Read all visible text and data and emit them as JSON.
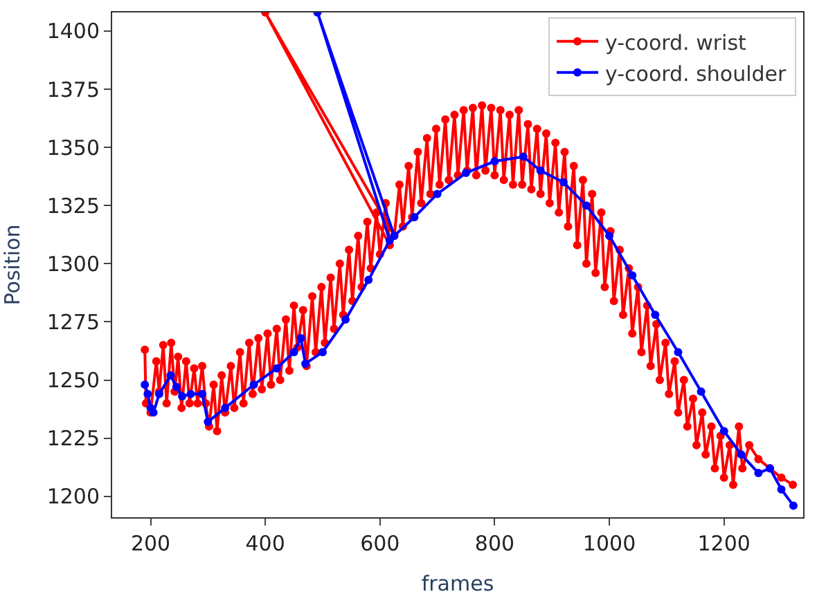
{
  "chart_data": {
    "type": "line",
    "xlabel": "frames",
    "ylabel": "Position",
    "xlim": [
      133,
      1338
    ],
    "ylim": [
      1191,
      1408
    ],
    "xticks": [
      200,
      400,
      600,
      800,
      1000,
      1200
    ],
    "yticks": [
      1200,
      1225,
      1250,
      1275,
      1300,
      1325,
      1350,
      1375,
      1400
    ],
    "legend": "top right",
    "marker": "circle",
    "line_style": "solid",
    "series": [
      {
        "name": "y-coord. wrist",
        "color": "#ff0000",
        "x": [
          190,
          192,
          200,
          210,
          215,
          222,
          228,
          236,
          242,
          248,
          254,
          262,
          268,
          276,
          282,
          290,
          296,
          302,
          310,
          316,
          324,
          330,
          340,
          346,
          356,
          362,
          372,
          378,
          388,
          394,
          404,
          410,
          420,
          426,
          436,
          442,
          450,
          456,
          466,
          472,
          482,
          488,
          498,
          504,
          514,
          520,
          530,
          536,
          546,
          552,
          562,
          568,
          578,
          584,
          594,
          600,
          610,
          617,
          400,
          625,
          634,
          640,
          650,
          656,
          666,
          672,
          682,
          688,
          698,
          704,
          714,
          720,
          730,
          736,
          746,
          752,
          762,
          768,
          778,
          784,
          794,
          800,
          810,
          816,
          826,
          832,
          842,
          848,
          858,
          864,
          874,
          880,
          890,
          896,
          906,
          912,
          922,
          928,
          938,
          944,
          954,
          960,
          970,
          976,
          986,
          992,
          1002,
          1008,
          1018,
          1024,
          1034,
          1040,
          1050,
          1056,
          1066,
          1072,
          1082,
          1088,
          1098,
          1104,
          1114,
          1120,
          1130,
          1136,
          1146,
          1152,
          1162,
          1168,
          1178,
          1184,
          1194,
          1200,
          1210,
          1216,
          1226,
          1232,
          1244,
          1260,
          1280,
          1300,
          1320
        ],
        "values": [
          1263,
          1240,
          1236,
          1258,
          1245,
          1265,
          1240,
          1266,
          1245,
          1260,
          1238,
          1258,
          1240,
          1255,
          1240,
          1256,
          1240,
          1230,
          1248,
          1228,
          1252,
          1236,
          1256,
          1238,
          1262,
          1240,
          1266,
          1244,
          1268,
          1246,
          1270,
          1248,
          1272,
          1250,
          1276,
          1254,
          1282,
          1264,
          1280,
          1256,
          1286,
          1262,
          1290,
          1266,
          1294,
          1272,
          1300,
          1278,
          1306,
          1284,
          1312,
          1290,
          1318,
          1298,
          1322,
          1304,
          1326,
          1308,
          1408,
          1312,
          1334,
          1316,
          1342,
          1320,
          1348,
          1326,
          1354,
          1330,
          1358,
          1334,
          1362,
          1336,
          1364,
          1338,
          1366,
          1340,
          1367,
          1338,
          1368,
          1340,
          1367,
          1338,
          1366,
          1336,
          1364,
          1334,
          1366,
          1334,
          1360,
          1332,
          1358,
          1330,
          1356,
          1326,
          1352,
          1322,
          1348,
          1316,
          1342,
          1308,
          1336,
          1300,
          1330,
          1296,
          1322,
          1290,
          1314,
          1284,
          1306,
          1278,
          1298,
          1270,
          1290,
          1262,
          1282,
          1256,
          1274,
          1250,
          1266,
          1244,
          1258,
          1236,
          1250,
          1230,
          1242,
          1222,
          1236,
          1218,
          1230,
          1212,
          1226,
          1208,
          1222,
          1205,
          1230,
          1212,
          1222,
          1216,
          1212,
          1208,
          1205
        ]
      },
      {
        "name": "y-coord. shoulder",
        "color": "#0000ff",
        "x": [
          190,
          195,
          200,
          205,
          215,
          235,
          245,
          255,
          270,
          290,
          300,
          330,
          380,
          420,
          450,
          462,
          470,
          500,
          540,
          580,
          617,
          491,
          625,
          660,
          700,
          750,
          800,
          850,
          880,
          920,
          960,
          1000,
          1040,
          1080,
          1120,
          1160,
          1200,
          1230,
          1260,
          1280,
          1300,
          1321
        ],
        "values": [
          1248,
          1244,
          1238,
          1236,
          1244,
          1252,
          1247,
          1243,
          1244,
          1244,
          1232,
          1238,
          1248,
          1255,
          1262,
          1268,
          1257,
          1262,
          1276,
          1293,
          1310,
          1408,
          1312,
          1320,
          1330,
          1339,
          1344,
          1346,
          1340,
          1335,
          1325,
          1312,
          1295,
          1278,
          1262,
          1245,
          1228,
          1218,
          1210,
          1212,
          1203,
          1196
        ]
      }
    ]
  }
}
